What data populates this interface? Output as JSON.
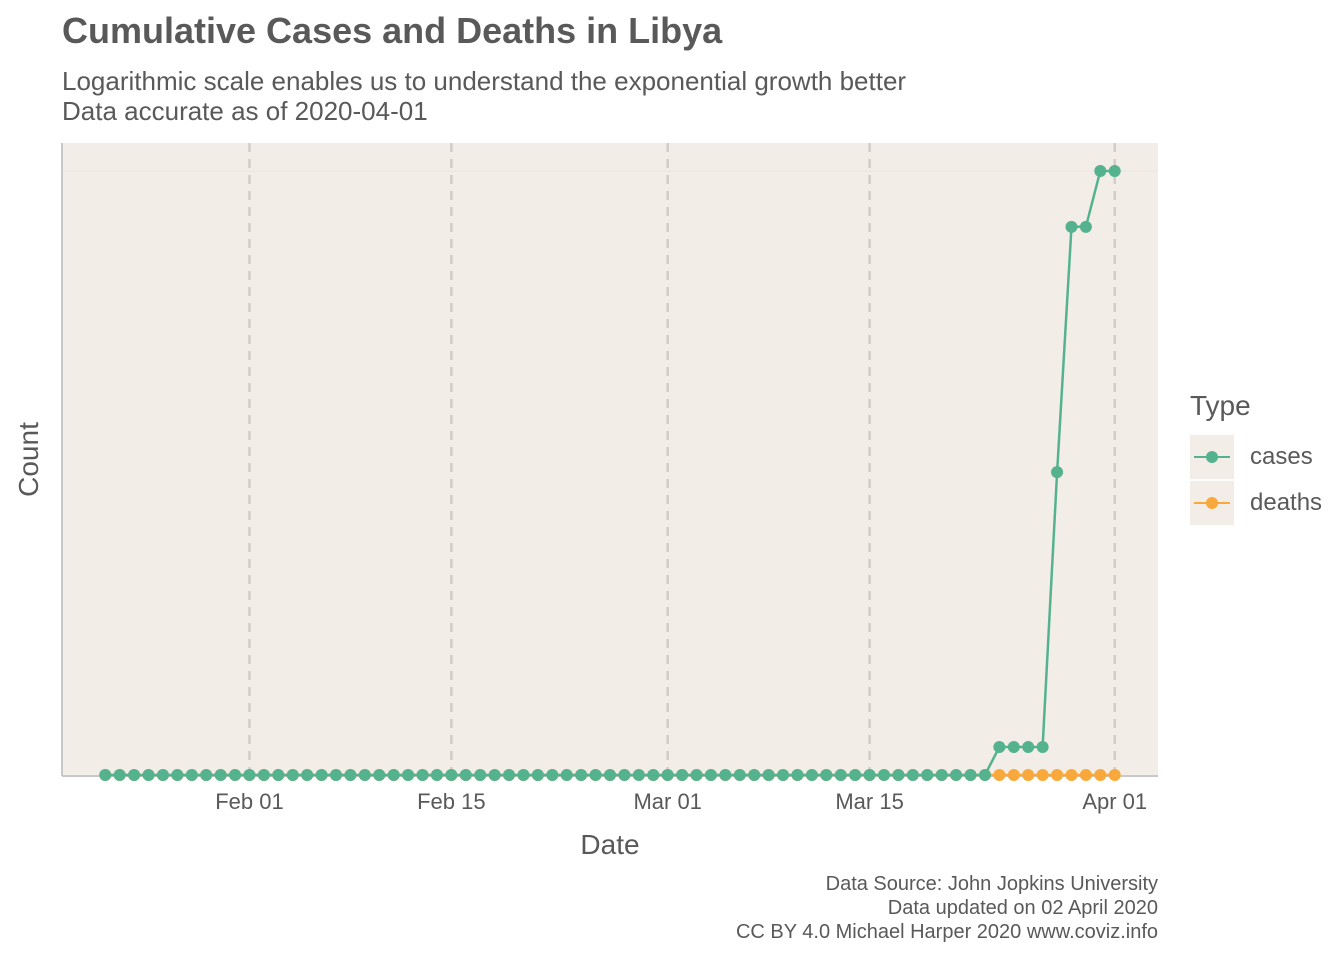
{
  "header": {
    "title": "Cumulative Cases and Deaths in Libya",
    "subtitle_line1": "Logarithmic scale enables us to understand the exponential growth better",
    "subtitle_line2": "Data accurate as of 2020-04-01"
  },
  "caption": {
    "line1": "Data Source: John Jopkins University",
    "line2": "Data updated on 02 April 2020",
    "line3": "CC BY 4.0 Michael Harper 2020 www.coviz.info"
  },
  "legend": {
    "title": "Type",
    "items": [
      {
        "label": "cases",
        "color": "#55b28f"
      },
      {
        "label": "deaths",
        "color": "#f9a93b"
      }
    ]
  },
  "colors": {
    "panel_background": "#f3ede7",
    "grid": "#d0cdc9",
    "axis": "#c8c8c8",
    "text": "#595959"
  },
  "chart_data": {
    "type": "line",
    "xlabel": "Date",
    "ylabel": "Count",
    "x_ticks": [
      {
        "date": "2020-02-01",
        "label": "Feb 01"
      },
      {
        "date": "2020-02-15",
        "label": "Feb 15"
      },
      {
        "date": "2020-03-01",
        "label": "Mar 01"
      },
      {
        "date": "2020-03-15",
        "label": "Mar 15"
      },
      {
        "date": "2020-04-01",
        "label": "Apr 01"
      }
    ],
    "xlim": [
      "2020-01-19",
      "2020-04-04"
    ],
    "x_start": "2020-01-22",
    "x_end": "2020-04-01",
    "y_scale": "log",
    "ylim": [
      1,
      10
    ],
    "grid": "vertical major gridlines, dashed",
    "legend_position": "right",
    "series": [
      {
        "name": "cases",
        "color": "#55b28f",
        "zeros_until": "2020-03-23",
        "points": [
          [
            "2020-03-24",
            1
          ],
          [
            "2020-03-25",
            1
          ],
          [
            "2020-03-26",
            1
          ],
          [
            "2020-03-27",
            1
          ],
          [
            "2020-03-28",
            3
          ],
          [
            "2020-03-29",
            8
          ],
          [
            "2020-03-30",
            8
          ],
          [
            "2020-03-31",
            10
          ],
          [
            "2020-04-01",
            10
          ]
        ]
      },
      {
        "name": "deaths",
        "color": "#f9a93b",
        "constant_value": 0
      }
    ]
  }
}
